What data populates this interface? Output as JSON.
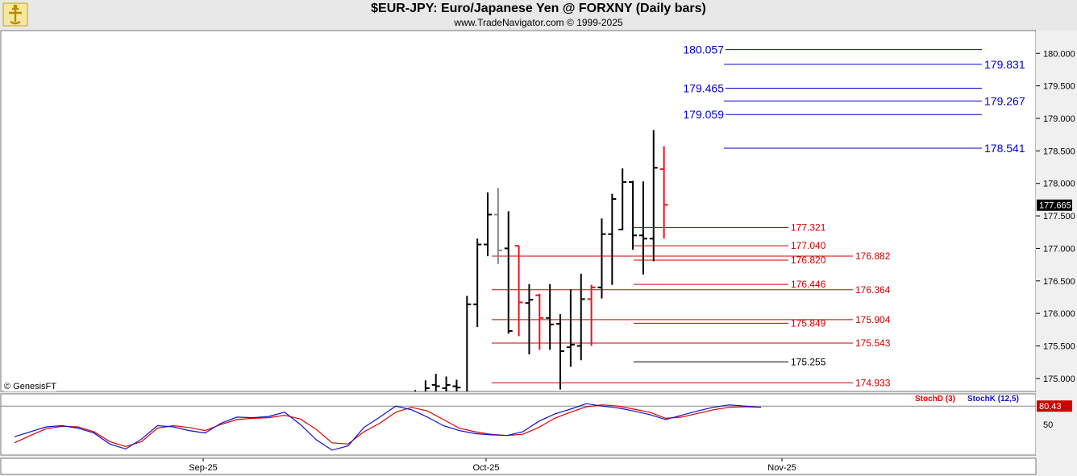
{
  "header": {
    "title": "$EUR-JPY:  Euro/Japanese Yen @ FORXNY  (Daily bars)",
    "subtitle": "www.TradeNavigator.com © 1999-2025",
    "copyright": "© GenesisFT"
  },
  "colors": {
    "background": "#ffffff",
    "frame": "#f0f0f0",
    "up_bar": "#000000",
    "down_bar": "#e8141c",
    "neutral_bar": "#888888",
    "blue_levels": "#0000cc",
    "red_levels": "#cc0000",
    "stoch_d": "#dd0000",
    "stoch_k": "#1010cc",
    "last_price_bg": "#000000"
  },
  "chart_data": [
    {
      "type": "ohlc",
      "title": "$EUR-JPY:  Euro/Japanese Yen @ FORXNY  (Daily bars)",
      "ylim": [
        174.8,
        180.35
      ],
      "y_ticks": [
        "180.000",
        "179.500",
        "179.000",
        "178.500",
        "178.000",
        "177.500",
        "177.000",
        "176.500",
        "176.000",
        "175.500",
        "175.000"
      ],
      "x_ticks": [
        "Sep-25",
        "Oct-25",
        "Nov-25"
      ],
      "last_price": "177.665",
      "bars": [
        {
          "i": 0,
          "o": 174.7,
          "h": 174.82,
          "l": 174.5,
          "c": 174.8,
          "color": "up"
        },
        {
          "i": 1,
          "o": 174.75,
          "h": 174.97,
          "l": 174.6,
          "c": 174.85,
          "color": "up"
        },
        {
          "i": 2,
          "o": 174.9,
          "h": 175.07,
          "l": 174.7,
          "c": 174.88,
          "color": "up"
        },
        {
          "i": 3,
          "o": 174.85,
          "h": 175.03,
          "l": 174.65,
          "c": 174.9,
          "color": "up"
        },
        {
          "i": 4,
          "o": 174.88,
          "h": 174.98,
          "l": 174.6,
          "c": 174.86,
          "color": "up"
        },
        {
          "i": 5,
          "o": 174.6,
          "h": 176.27,
          "l": 174.4,
          "c": 176.14,
          "color": "up"
        },
        {
          "i": 6,
          "o": 176.14,
          "h": 177.15,
          "l": 175.79,
          "c": 177.06,
          "color": "up"
        },
        {
          "i": 7,
          "o": 177.06,
          "h": 177.86,
          "l": 176.88,
          "c": 177.52,
          "color": "up"
        },
        {
          "i": 8,
          "o": 177.52,
          "h": 177.93,
          "l": 176.76,
          "c": 176.97,
          "color": "neutral"
        },
        {
          "i": 9,
          "o": 177.0,
          "h": 177.57,
          "l": 175.69,
          "c": 175.73,
          "color": "up"
        },
        {
          "i": 10,
          "o": 177.04,
          "h": 177.04,
          "l": 175.65,
          "c": 176.17,
          "color": "down"
        },
        {
          "i": 11,
          "o": 176.16,
          "h": 176.45,
          "l": 175.37,
          "c": 176.21,
          "color": "up"
        },
        {
          "i": 12,
          "o": 176.28,
          "h": 176.3,
          "l": 175.44,
          "c": 175.93,
          "color": "down"
        },
        {
          "i": 13,
          "o": 175.93,
          "h": 176.45,
          "l": 175.44,
          "c": 175.83,
          "color": "up"
        },
        {
          "i": 14,
          "o": 175.84,
          "h": 175.99,
          "l": 174.83,
          "c": 175.42,
          "color": "up"
        },
        {
          "i": 15,
          "o": 175.48,
          "h": 176.37,
          "l": 175.18,
          "c": 175.52,
          "color": "up"
        },
        {
          "i": 16,
          "o": 175.5,
          "h": 176.61,
          "l": 175.28,
          "c": 176.22,
          "color": "up"
        },
        {
          "i": 17,
          "o": 176.22,
          "h": 176.44,
          "l": 175.5,
          "c": 176.4,
          "color": "down"
        },
        {
          "i": 18,
          "o": 176.4,
          "h": 177.46,
          "l": 176.23,
          "c": 177.22,
          "color": "up"
        },
        {
          "i": 19,
          "o": 177.22,
          "h": 177.84,
          "l": 176.44,
          "c": 177.76,
          "color": "up"
        },
        {
          "i": 20,
          "o": 177.29,
          "h": 178.23,
          "l": 177.28,
          "c": 178.02,
          "color": "up"
        },
        {
          "i": 21,
          "o": 178.02,
          "h": 178.04,
          "l": 176.98,
          "c": 177.2,
          "color": "up"
        },
        {
          "i": 22,
          "o": 177.2,
          "h": 178.03,
          "l": 176.6,
          "c": 177.15,
          "color": "up"
        },
        {
          "i": 23,
          "o": 177.15,
          "h": 178.82,
          "l": 176.8,
          "c": 178.24,
          "color": "up"
        },
        {
          "i": 24,
          "o": 178.22,
          "h": 178.57,
          "l": 177.15,
          "c": 177.67,
          "color": "down"
        }
      ],
      "blue_levels": [
        {
          "value": 180.057,
          "label": "180.057",
          "side": "left"
        },
        {
          "value": 179.831,
          "label": "179.831",
          "side": "right"
        },
        {
          "value": 179.465,
          "label": "179.465",
          "side": "left"
        },
        {
          "value": 179.267,
          "label": "179.267",
          "side": "right"
        },
        {
          "value": 179.059,
          "label": "179.059",
          "side": "left"
        },
        {
          "value": 178.541,
          "label": "178.541",
          "side": "right"
        }
      ],
      "red_levels": [
        {
          "value": 177.321,
          "label": "177.321",
          "group": "short"
        },
        {
          "value": 177.04,
          "label": "177.040",
          "group": "short"
        },
        {
          "value": 176.882,
          "label": "176.882",
          "group": "long"
        },
        {
          "value": 176.82,
          "label": "176.820",
          "group": "short"
        },
        {
          "value": 176.446,
          "label": "176.446",
          "group": "short"
        },
        {
          "value": 176.364,
          "label": "176.364",
          "group": "long"
        },
        {
          "value": 175.904,
          "label": "175.904",
          "group": "long"
        },
        {
          "value": 175.849,
          "label": "175.849",
          "group": "short"
        },
        {
          "value": 175.543,
          "label": "175.543",
          "group": "long"
        },
        {
          "value": 175.255,
          "label": "175.255",
          "group": "black"
        },
        {
          "value": 174.933,
          "label": "174.933",
          "group": "long"
        }
      ]
    },
    {
      "type": "line",
      "title": "",
      "ylim": [
        0,
        100
      ],
      "y_ticks": [
        "50"
      ],
      "reference_line": 80,
      "last_value": "80.43",
      "series": [
        {
          "name": "StochD (3)",
          "color": "red",
          "values": [
            20,
            32,
            43,
            47,
            46,
            38,
            22,
            14,
            22,
            44,
            48,
            45,
            40,
            50,
            58,
            60,
            61,
            65,
            59,
            42,
            20,
            18,
            38,
            52,
            70,
            78,
            72,
            58,
            44,
            38,
            34,
            32,
            34,
            45,
            60,
            70,
            79,
            82,
            80,
            75,
            70,
            60,
            62,
            68,
            74,
            78,
            79,
            78
          ]
        },
        {
          "name": "StochK (12,5)",
          "color": "blue",
          "values": [
            30,
            38,
            46,
            48,
            44,
            36,
            18,
            10,
            26,
            48,
            46,
            40,
            36,
            52,
            62,
            61,
            63,
            70,
            50,
            25,
            8,
            15,
            45,
            62,
            80,
            74,
            62,
            48,
            40,
            35,
            33,
            32,
            38,
            55,
            67,
            75,
            84,
            80,
            77,
            72,
            66,
            58,
            65,
            72,
            78,
            82,
            80,
            78
          ]
        }
      ]
    }
  ]
}
